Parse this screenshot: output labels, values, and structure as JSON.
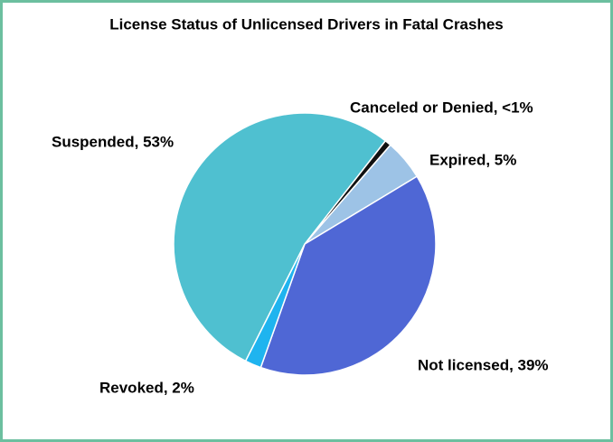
{
  "chart_data": {
    "type": "pie",
    "title": "License Status of Unlicensed Drivers in Fatal Crashes",
    "labels": [
      "Canceled or Denied, <1%",
      "Expired, 5%",
      "Not licensed, 39%",
      "Revoked, 2%",
      "Suspended, 53%"
    ],
    "values": [
      0.8,
      5,
      39,
      2,
      53
    ],
    "colors": [
      "#111111",
      "#9dc3e6",
      "#4f67d5",
      "#1fb4ef",
      "#4fc0d0"
    ]
  }
}
